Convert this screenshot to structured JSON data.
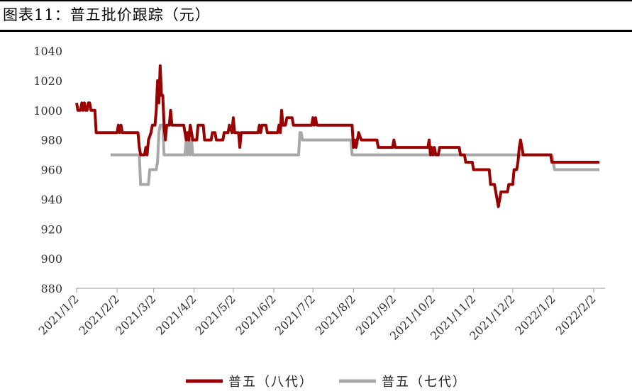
{
  "figure": {
    "title": "图表11：普五批价跟踪（元）"
  },
  "chart_data": {
    "type": "line",
    "title": "图表11：普五批价跟踪（元）",
    "xlabel": "",
    "ylabel": "",
    "ylim": [
      880,
      1040
    ],
    "yticks": [
      880,
      900,
      920,
      940,
      960,
      980,
      1000,
      1020,
      1040
    ],
    "xticks": [
      "2021/1/2",
      "2021/2/2",
      "2021/3/2",
      "2021/4/2",
      "2021/5/2",
      "2021/6/2",
      "2021/7/2",
      "2021/8/2",
      "2021/9/2",
      "2021/10/2",
      "2021/11/2",
      "2021/12/2",
      "2022/1/2",
      "2022/2/2"
    ],
    "xlim": [
      "2021/1/2",
      "2022/2/5"
    ],
    "grid": false,
    "legend": "bottom",
    "series": [
      {
        "name": "普五（八代）",
        "color": "#9B0000",
        "points": [
          [
            "2021/1/2",
            1005
          ],
          [
            "2021/1/3",
            1000
          ],
          [
            "2021/1/5",
            1000
          ],
          [
            "2021/1/6",
            1005
          ],
          [
            "2021/1/7",
            1000
          ],
          [
            "2021/1/8",
            1005
          ],
          [
            "2021/1/9",
            1000
          ],
          [
            "2021/1/10",
            1000
          ],
          [
            "2021/1/11",
            1005
          ],
          [
            "2021/1/12",
            1005
          ],
          [
            "2021/1/13",
            1000
          ],
          [
            "2021/1/16",
            1000
          ],
          [
            "2021/1/17",
            985
          ],
          [
            "2021/2/2",
            985
          ],
          [
            "2021/2/3",
            990
          ],
          [
            "2021/2/4",
            985
          ],
          [
            "2021/2/5",
            990
          ],
          [
            "2021/2/6",
            985
          ],
          [
            "2021/2/18",
            985
          ],
          [
            "2021/2/19",
            975
          ],
          [
            "2021/2/20",
            970
          ],
          [
            "2021/2/23",
            970
          ],
          [
            "2021/2/24",
            975
          ],
          [
            "2021/2/25",
            970
          ],
          [
            "2021/2/26",
            980
          ],
          [
            "2021/2/28",
            985
          ],
          [
            "2021/3/1",
            990
          ],
          [
            "2021/3/3",
            990
          ],
          [
            "2021/3/4",
            1000
          ],
          [
            "2021/3/5",
            1020
          ],
          [
            "2021/3/6",
            1005
          ],
          [
            "2021/3/7",
            1030
          ],
          [
            "2021/3/8",
            1010
          ],
          [
            "2021/3/9",
            1010
          ],
          [
            "2021/3/10",
            990
          ],
          [
            "2021/3/11",
            980
          ],
          [
            "2021/3/12",
            990
          ],
          [
            "2021/3/14",
            990
          ],
          [
            "2021/3/15",
            1000
          ],
          [
            "2021/3/16",
            990
          ],
          [
            "2021/3/25",
            990
          ],
          [
            "2021/3/26",
            985
          ],
          [
            "2021/3/27",
            980
          ],
          [
            "2021/3/28",
            985
          ],
          [
            "2021/3/29",
            980
          ],
          [
            "2021/3/30",
            990
          ],
          [
            "2021/4/1",
            980
          ],
          [
            "2021/4/4",
            980
          ],
          [
            "2021/4/5",
            990
          ],
          [
            "2021/4/9",
            990
          ],
          [
            "2021/4/10",
            980
          ],
          [
            "2021/4/15",
            980
          ],
          [
            "2021/4/16",
            985
          ],
          [
            "2021/4/18",
            985
          ],
          [
            "2021/4/19",
            980
          ],
          [
            "2021/4/24",
            980
          ],
          [
            "2021/4/25",
            985
          ],
          [
            "2021/4/28",
            985
          ],
          [
            "2021/4/29",
            990
          ],
          [
            "2021/5/1",
            985
          ],
          [
            "2021/5/2",
            995
          ],
          [
            "2021/5/3",
            985
          ],
          [
            "2021/5/6",
            985
          ],
          [
            "2021/5/7",
            975
          ],
          [
            "2021/5/8",
            985
          ],
          [
            "2021/5/21",
            985
          ],
          [
            "2021/5/22",
            990
          ],
          [
            "2021/5/23",
            985
          ],
          [
            "2021/5/24",
            990
          ],
          [
            "2021/5/27",
            990
          ],
          [
            "2021/5/28",
            985
          ],
          [
            "2021/6/5",
            985
          ],
          [
            "2021/6/6",
            990
          ],
          [
            "2021/6/7",
            985
          ],
          [
            "2021/6/8",
            1000
          ],
          [
            "2021/6/9",
            990
          ],
          [
            "2021/6/11",
            990
          ],
          [
            "2021/6/12",
            995
          ],
          [
            "2021/6/16",
            995
          ],
          [
            "2021/6/17",
            990
          ],
          [
            "2021/7/1",
            990
          ],
          [
            "2021/7/2",
            995
          ],
          [
            "2021/7/3",
            990
          ],
          [
            "2021/7/4",
            995
          ],
          [
            "2021/7/5",
            990
          ],
          [
            "2021/8/1",
            990
          ],
          [
            "2021/8/2",
            975
          ],
          [
            "2021/8/3",
            980
          ],
          [
            "2021/8/4",
            975
          ],
          [
            "2021/8/5",
            980
          ],
          [
            "2021/8/6",
            985
          ],
          [
            "2021/8/8",
            980
          ],
          [
            "2021/8/20",
            980
          ],
          [
            "2021/8/21",
            975
          ],
          [
            "2021/9/1",
            975
          ],
          [
            "2021/9/2",
            980
          ],
          [
            "2021/9/3",
            975
          ],
          [
            "2021/9/28",
            975
          ],
          [
            "2021/9/29",
            980
          ],
          [
            "2021/9/30",
            970
          ],
          [
            "2021/10/1",
            975
          ],
          [
            "2021/10/2",
            970
          ],
          [
            "2021/10/3",
            975
          ],
          [
            "2021/10/4",
            970
          ],
          [
            "2021/10/6",
            970
          ],
          [
            "2021/10/7",
            975
          ],
          [
            "2021/10/22",
            975
          ],
          [
            "2021/10/23",
            970
          ],
          [
            "2021/10/26",
            970
          ],
          [
            "2021/10/27",
            965
          ],
          [
            "2021/11/1",
            965
          ],
          [
            "2021/11/2",
            960
          ],
          [
            "2021/11/14",
            960
          ],
          [
            "2021/11/15",
            950
          ],
          [
            "2021/11/18",
            950
          ],
          [
            "2021/11/19",
            945
          ],
          [
            "2021/11/20",
            940
          ],
          [
            "2021/11/21",
            935
          ],
          [
            "2021/11/22",
            940
          ],
          [
            "2021/11/23",
            945
          ],
          [
            "2021/11/28",
            945
          ],
          [
            "2021/11/29",
            950
          ],
          [
            "2021/12/2",
            950
          ],
          [
            "2021/12/3",
            960
          ],
          [
            "2021/12/5",
            960
          ],
          [
            "2021/12/6",
            965
          ],
          [
            "2021/12/7",
            975
          ],
          [
            "2021/12/8",
            980
          ],
          [
            "2021/12/9",
            975
          ],
          [
            "2021/12/10",
            970
          ],
          [
            "2021/12/31",
            970
          ],
          [
            "2022/1/1",
            965
          ],
          [
            "2022/1/10",
            965
          ],
          [
            "2022/1/11",
            965
          ],
          [
            "2022/2/2",
            965
          ]
        ],
        "tail_points": [
          [
            "2022/2/2",
            965
          ],
          [
            "2022/2/5",
            965
          ]
        ]
      },
      {
        "name": "普五（七代）",
        "color": "#A8A8A8",
        "points": [
          [
            "2021/1/28",
            970
          ],
          [
            "2021/2/19",
            970
          ],
          [
            "2021/2/20",
            950
          ],
          [
            "2021/2/26",
            950
          ],
          [
            "2021/2/27",
            960
          ],
          [
            "2021/3/4",
            960
          ],
          [
            "2021/3/5",
            965
          ],
          [
            "2021/3/6",
            985
          ],
          [
            "2021/3/7",
            990
          ],
          [
            "2021/3/9",
            990
          ],
          [
            "2021/3/10",
            970
          ],
          [
            "2021/3/26",
            970
          ],
          [
            "2021/3/27",
            980
          ],
          [
            "2021/3/28",
            970
          ],
          [
            "2021/3/29",
            980
          ],
          [
            "2021/3/30",
            970
          ],
          [
            "2021/3/31",
            980
          ],
          [
            "2021/4/1",
            970
          ],
          [
            "2021/6/21",
            970
          ],
          [
            "2021/6/22",
            985
          ],
          [
            "2021/6/23",
            985
          ],
          [
            "2021/6/24",
            980
          ],
          [
            "2021/7/31",
            980
          ],
          [
            "2021/8/1",
            970
          ],
          [
            "2021/10/2",
            970
          ],
          [
            "2021/10/3",
            972
          ],
          [
            "2021/10/5",
            970
          ],
          [
            "2022/1/1",
            970
          ],
          [
            "2022/1/3",
            960
          ],
          [
            "2022/2/2",
            960
          ]
        ],
        "tail_points": [
          [
            "2022/2/2",
            960
          ],
          [
            "2022/2/5",
            960
          ]
        ]
      }
    ]
  },
  "legend": {
    "labels": [
      "普五（八代）",
      "普五（七代）"
    ]
  }
}
